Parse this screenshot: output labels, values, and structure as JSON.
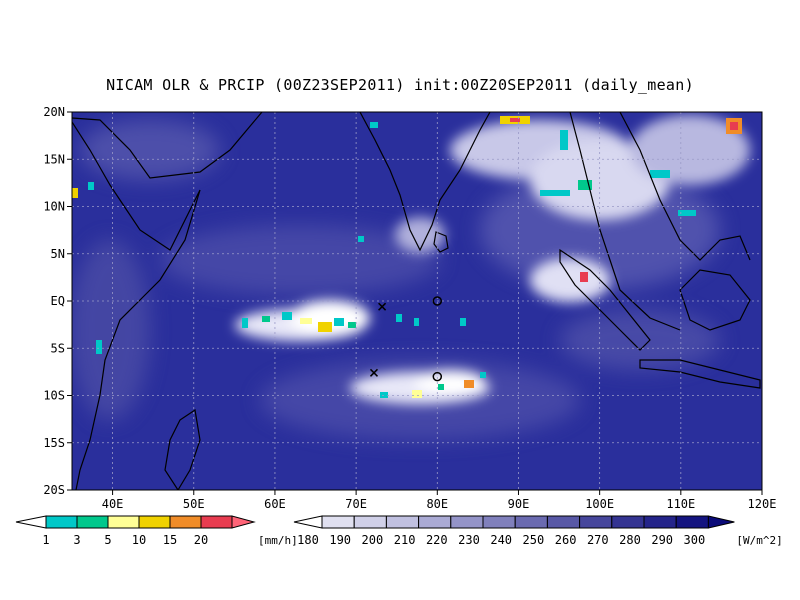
{
  "title": "NICAM OLR & PRCIP (00Z23SEP2011) init:00Z20SEP2011 (daily_mean)",
  "map": {
    "lon_range": [
      35,
      120
    ],
    "lat_range": [
      -20,
      20
    ],
    "lat_labels": [
      "20N",
      "15N",
      "10N",
      "5N",
      "EQ",
      "5S",
      "10S",
      "15S",
      "20S"
    ],
    "lat_values": [
      20,
      15,
      10,
      5,
      0,
      -5,
      -10,
      -15,
      -20
    ],
    "lon_labels": [
      "40E",
      "50E",
      "60E",
      "70E",
      "80E",
      "90E",
      "100E",
      "110E",
      "120E"
    ],
    "lon_values": [
      40,
      50,
      60,
      70,
      80,
      90,
      100,
      110,
      120
    ],
    "background_color": "#2a2f9c",
    "markers": [
      {
        "type": "x",
        "lon": 73.2,
        "lat": -0.6
      },
      {
        "type": "o",
        "lon": 80.0,
        "lat": 0.0
      },
      {
        "type": "x",
        "lon": 72.2,
        "lat": -7.6
      },
      {
        "type": "o",
        "lon": 80.0,
        "lat": -8.0
      }
    ]
  },
  "precip_legend": {
    "labels": [
      "1",
      "3",
      "5",
      "10",
      "15",
      "20"
    ],
    "unit": "[mm/h]",
    "colors": [
      "#00c8c8",
      "#00c88c",
      "#ffff96",
      "#f0d200",
      "#f08c28",
      "#e83c50"
    ]
  },
  "olr_legend": {
    "labels": [
      "180",
      "190",
      "200",
      "210",
      "220",
      "230",
      "240",
      "250",
      "260",
      "270",
      "280",
      "290",
      "300"
    ],
    "unit": "[W/m^2]",
    "colors": [
      "#ffffff",
      "#e0e0f0",
      "#d0d0e8",
      "#c0c0e0",
      "#aaaad4",
      "#9494c8",
      "#8080bc",
      "#6a6ab0",
      "#5858a6",
      "#46469c",
      "#343492",
      "#24248a",
      "#141480",
      "#0a0a78"
    ]
  }
}
